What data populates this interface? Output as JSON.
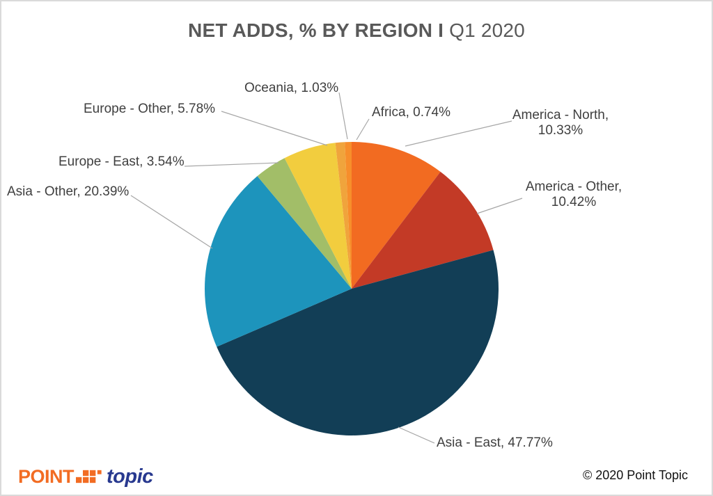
{
  "title": {
    "bold": "NET ADDS, % BY REGION I",
    "regular": " Q1 2020"
  },
  "chart_data": {
    "type": "pie",
    "title": "NET ADDS, % BY REGION I Q1 2020",
    "unit": "%",
    "start_angle_deg": 0,
    "direction": "clockwise",
    "legend_position": "outside-leader-lines",
    "label_color": "#3F3F3F",
    "leader_line_color": "#A6A6A6",
    "slices": [
      {
        "name": "America - North",
        "value": 10.33,
        "color": "#F26B21",
        "label_lines": [
          "America - North,",
          "10.33%"
        ]
      },
      {
        "name": "America - Other",
        "value": 10.42,
        "color": "#C33A26",
        "label_lines": [
          "America - Other,",
          "10.42%"
        ]
      },
      {
        "name": "Asia - East",
        "value": 47.77,
        "color": "#123E56",
        "label": "Asia - East, 47.77%"
      },
      {
        "name": "Asia - Other",
        "value": 20.39,
        "color": "#1D94BC",
        "label": "Asia - Other, 20.39%"
      },
      {
        "name": "Europe - East",
        "value": 3.54,
        "color": "#A2BE68",
        "label": "Europe - East, 3.54%"
      },
      {
        "name": "Europe - Other",
        "value": 5.78,
        "color": "#F2CD3E",
        "label": "Europe - Other, 5.78%"
      },
      {
        "name": "Oceania",
        "value": 1.03,
        "color": "#F0A43C",
        "label": "Oceania, 1.03%"
      },
      {
        "name": "Africa",
        "value": 0.74,
        "color": "#F78E2B",
        "label": "Africa, 0.74%"
      }
    ]
  },
  "footer": {
    "logo": {
      "point": "POINT",
      "topic": "topic",
      "point_color": "#F26C23",
      "topic_color": "#28398F",
      "squares_color": "#F26C23"
    },
    "copyright": "© 2020 Point Topic"
  }
}
